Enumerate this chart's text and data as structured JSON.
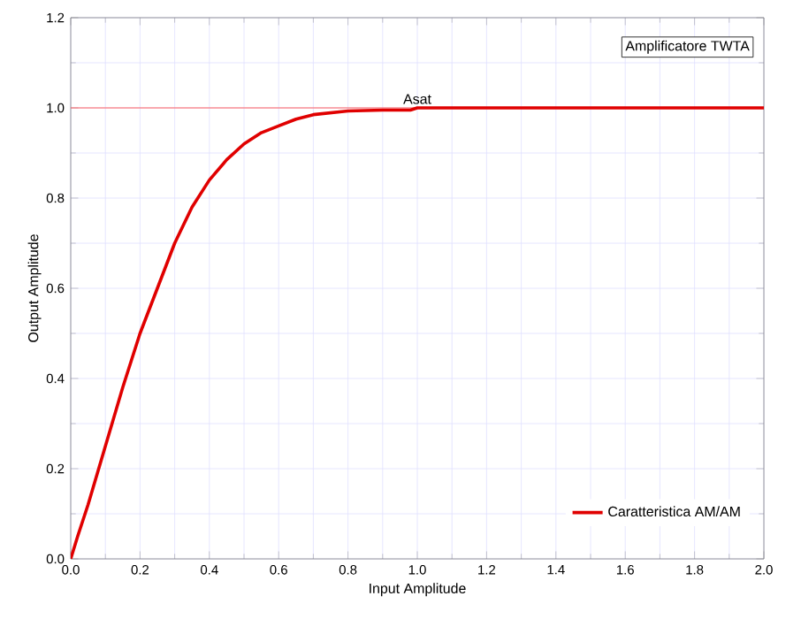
{
  "chart_data": {
    "type": "line",
    "xlabel": "Input Amplitude",
    "ylabel": "Output Amplitude",
    "x": [
      0,
      0.02,
      0.05,
      0.1,
      0.15,
      0.2,
      0.25,
      0.3,
      0.35,
      0.4,
      0.45,
      0.5,
      0.55,
      0.6,
      0.65,
      0.7,
      0.8,
      0.9,
      0.98,
      1.0,
      2.0
    ],
    "series": [
      {
        "name": "Caratteristica AM/AM",
        "color": "#e00000",
        "values": [
          0,
          0.05,
          0.12,
          0.25,
          0.38,
          0.5,
          0.6,
          0.7,
          0.78,
          0.84,
          0.885,
          0.92,
          0.945,
          0.96,
          0.975,
          0.985,
          0.993,
          0.995,
          0.995,
          1.0,
          1.0
        ]
      }
    ],
    "xlim": [
      0,
      2
    ],
    "xticks": [
      {
        "value": 0,
        "label": "0.0"
      },
      0.2,
      0.4,
      0.6,
      0.8,
      {
        "value": 1,
        "label": "1.0"
      },
      1.2,
      1.4,
      1.6,
      1.8,
      {
        "value": 2,
        "label": "2.0"
      }
    ],
    "ylim": [
      0,
      1.2
    ],
    "yticks": [
      {
        "value": 0,
        "label": "0.0"
      },
      0.2,
      0.4,
      0.6,
      0.8,
      {
        "value": 1,
        "label": "1.0"
      },
      1.2
    ],
    "grid": true,
    "legend": "bottom right",
    "marker": "none",
    "line_style": "solid",
    "ref_lines": [
      {
        "axis": "y",
        "value": 1.0,
        "color": "#ff6060"
      }
    ],
    "annotations": [
      {
        "text": "Asat",
        "x": 1.0,
        "y": 1.0
      },
      "Amplificatore TWTA"
    ]
  }
}
